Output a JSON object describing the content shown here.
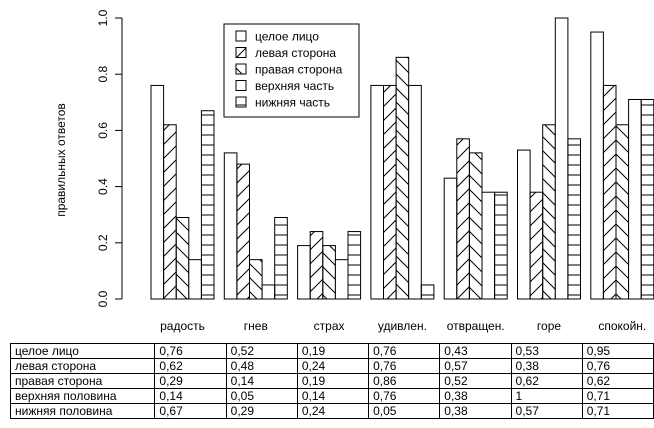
{
  "chart_data": {
    "type": "bar",
    "ylabel": "правильных ответов",
    "xlabel": "",
    "ylim": [
      0,
      1.0
    ],
    "yticks": [
      "0.0",
      "0.2",
      "0.4",
      "0.6",
      "0.8",
      "1.0"
    ],
    "categories": [
      "радость",
      "гнев",
      "страх",
      "удивлен.",
      "отвращен.",
      "горе",
      "спокойн."
    ],
    "series": [
      {
        "name": "целое лицо",
        "pattern": "empty",
        "values": [
          0.76,
          0.52,
          0.19,
          0.76,
          0.43,
          0.53,
          0.95
        ]
      },
      {
        "name": "левая сторона",
        "pattern": "diagonal-up",
        "values": [
          0.62,
          0.48,
          0.24,
          0.76,
          0.57,
          0.38,
          0.76
        ]
      },
      {
        "name": "правая сторона",
        "pattern": "diagonal-down",
        "values": [
          0.29,
          0.14,
          0.19,
          0.86,
          0.52,
          0.62,
          0.62
        ]
      },
      {
        "name": "верхняя часть",
        "pattern": "empty",
        "values": [
          0.14,
          0.05,
          0.14,
          0.76,
          0.38,
          1.0,
          0.71
        ]
      },
      {
        "name": "нижняя часть",
        "pattern": "horizontal",
        "values": [
          0.67,
          0.29,
          0.24,
          0.05,
          0.38,
          0.57,
          0.71
        ]
      }
    ],
    "legend_position": "top-center",
    "grid": false
  },
  "table": {
    "rows": [
      {
        "label": "целое лицо",
        "values": [
          "0,76",
          "0,52",
          "0,19",
          "0,76",
          "0,43",
          "0,53",
          "0,95"
        ]
      },
      {
        "label": "левая сторона",
        "values": [
          "0,62",
          "0,48",
          "0,24",
          "0,76",
          "0,57",
          "0,38",
          "0,76"
        ]
      },
      {
        "label": "правая сторона",
        "values": [
          "0,29",
          "0,14",
          "0,19",
          "0,86",
          "0,52",
          "0,62",
          "0,62"
        ]
      },
      {
        "label": "верхняя половина",
        "values": [
          "0,14",
          "0,05",
          "0,14",
          "0,76",
          "0,38",
          "1",
          "0,71"
        ]
      },
      {
        "label": "нижняя половина",
        "values": [
          "0,67",
          "0,29",
          "0,24",
          "0,05",
          "0,38",
          "0,57",
          "0,71"
        ]
      }
    ]
  }
}
